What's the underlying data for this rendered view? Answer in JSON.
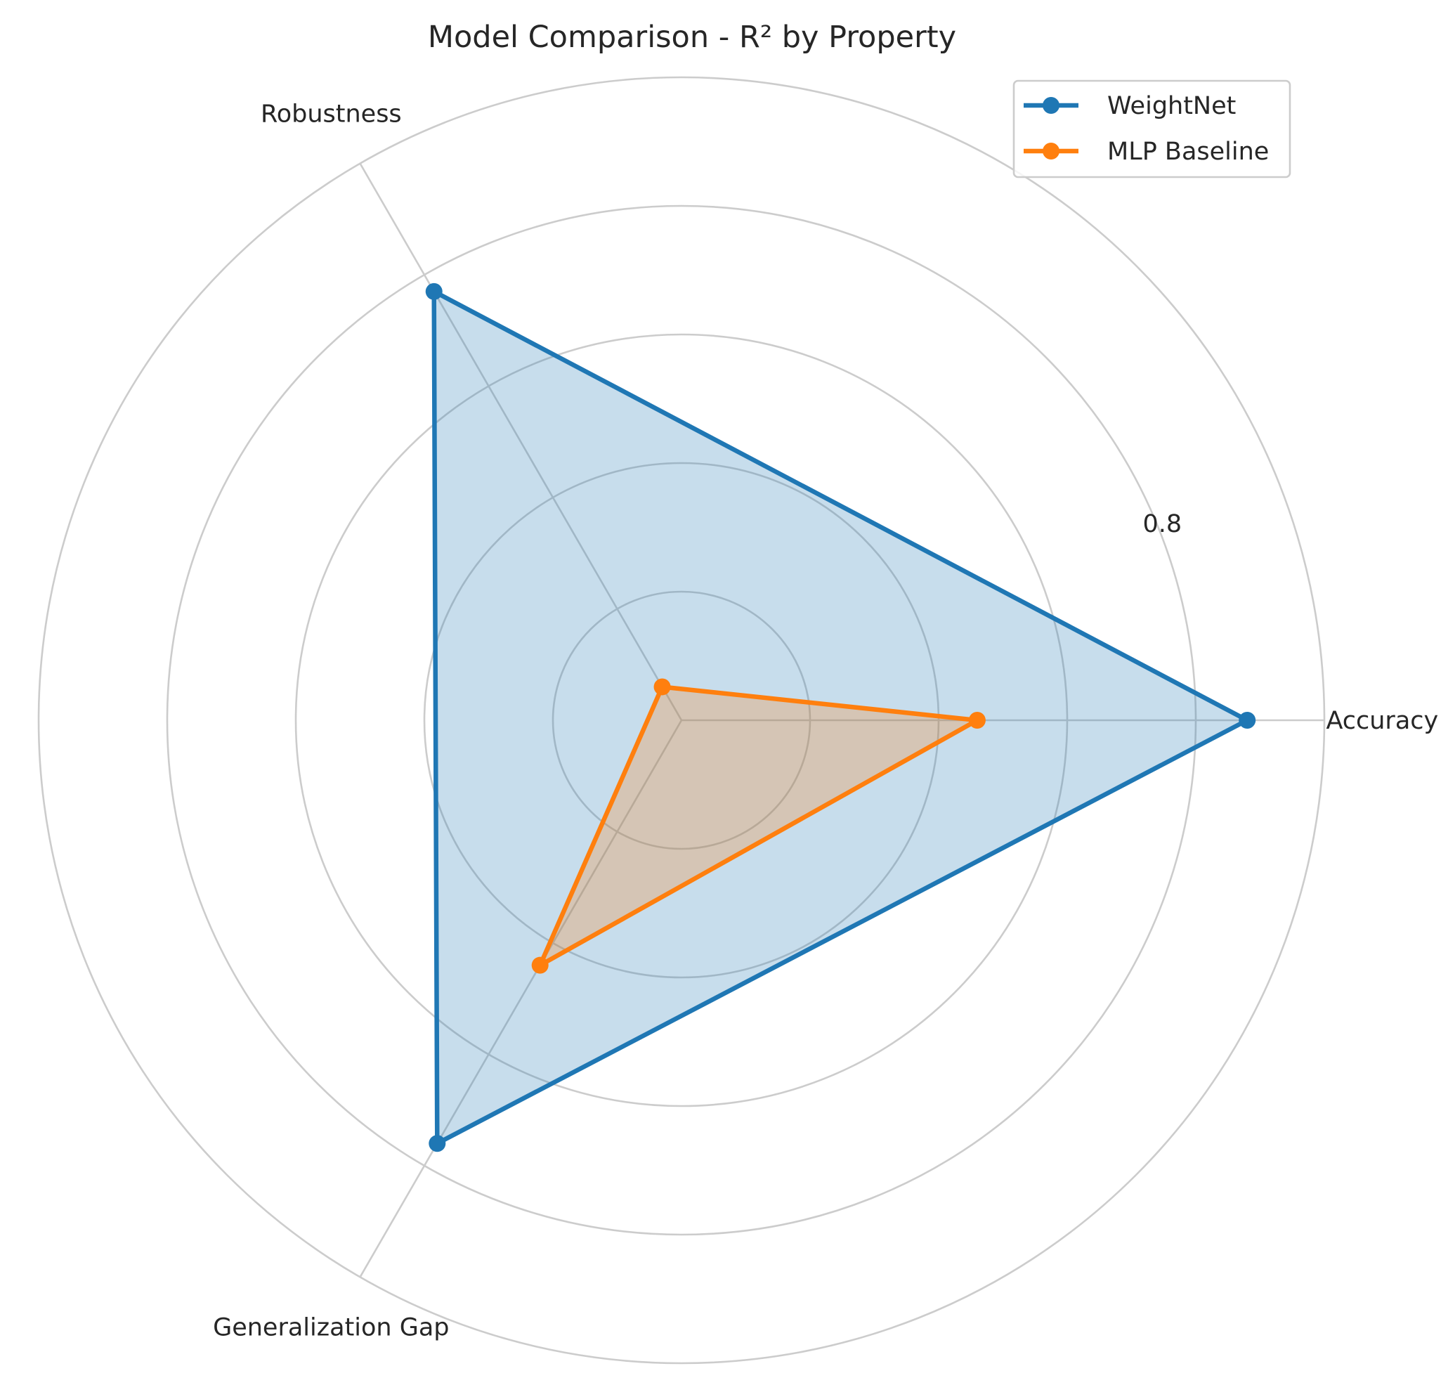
{
  "chart_data": {
    "type": "radar",
    "title": "Model Comparison - R² by Property",
    "categories": [
      "Accuracy",
      "Robustness",
      "Generalization Gap"
    ],
    "radial_range": [
      0,
      1.0
    ],
    "radial_ticks": [
      0.2,
      0.4,
      0.6,
      0.8,
      1.0
    ],
    "radial_tick_labels": [
      {
        "value": 0.8,
        "label": "0.8"
      }
    ],
    "series": [
      {
        "name": "WeightNet",
        "values": [
          0.88,
          0.77,
          0.76
        ],
        "color": "#1f77b4"
      },
      {
        "name": "MLP Baseline",
        "values": [
          0.46,
          0.06,
          0.44
        ],
        "color": "#ff7f0e"
      }
    ],
    "legend_position": "top-right",
    "grid": true
  }
}
